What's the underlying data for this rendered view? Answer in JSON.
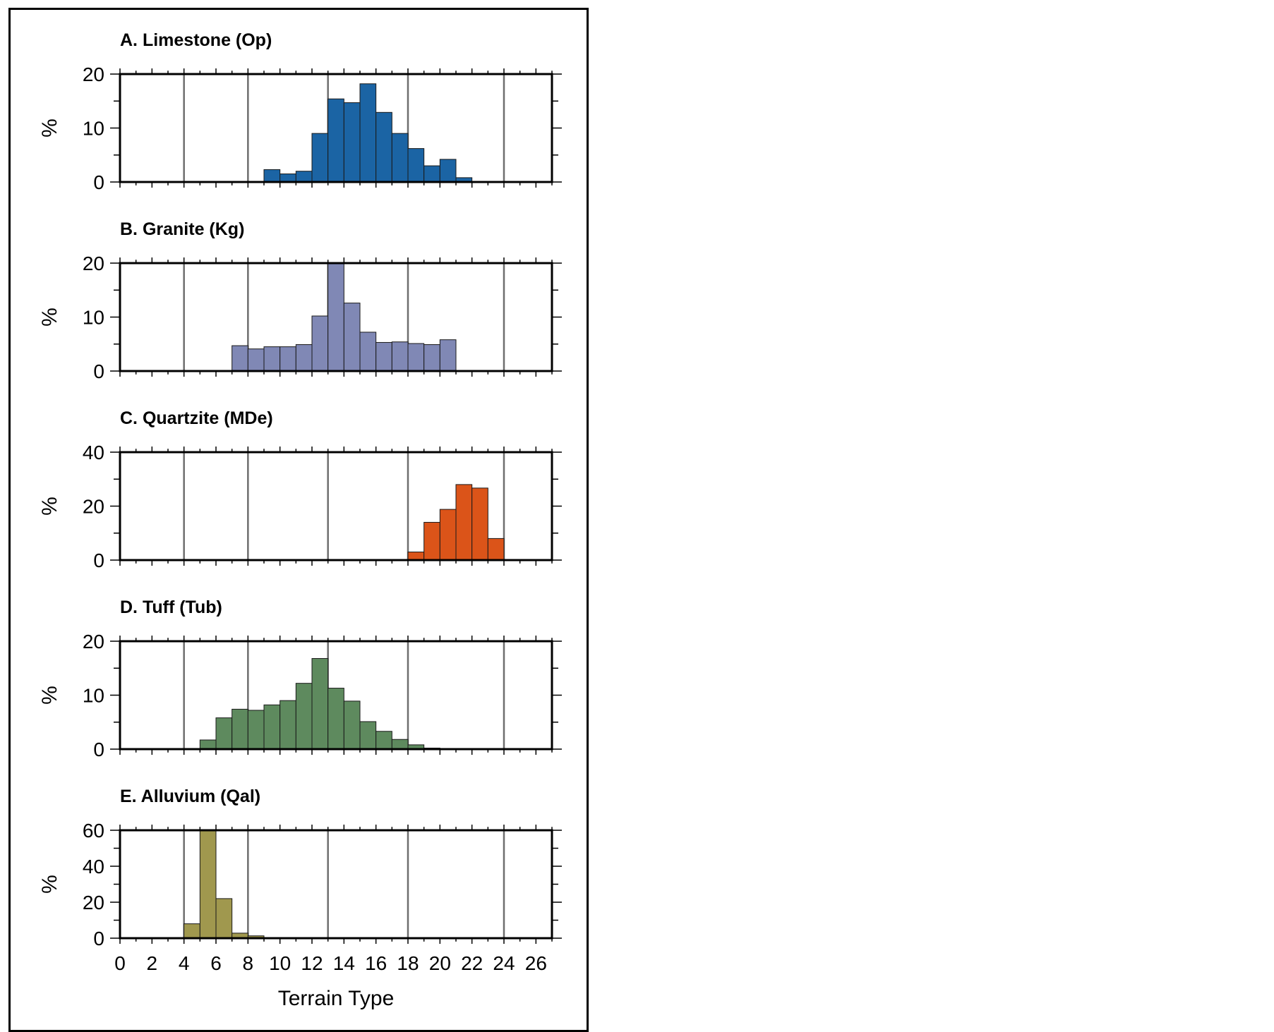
{
  "chart_data": [
    {
      "type": "bar",
      "title": "A. Limestone (Op)",
      "ylabel": "%",
      "xlabel": "",
      "ylim": [
        0,
        20
      ],
      "yticks": [
        0,
        10,
        20
      ],
      "xlim": [
        0,
        27
      ],
      "vlines": [
        4,
        8,
        13,
        18,
        24
      ],
      "color": "#1b64a4",
      "bin_width": 1,
      "x": [
        9.5,
        10.5,
        11.5,
        12.5,
        13.5,
        14.5,
        15.5,
        16.5,
        17.5,
        18.5,
        19.5,
        20.5,
        21.5
      ],
      "values": [
        2.3,
        1.5,
        2.0,
        9.0,
        15.4,
        14.7,
        18.2,
        12.9,
        9.0,
        6.2,
        3.0,
        4.2,
        0.8
      ]
    },
    {
      "type": "bar",
      "title": "B. Granite (Kg)",
      "ylabel": "%",
      "xlabel": "",
      "ylim": [
        0,
        20
      ],
      "yticks": [
        0,
        10,
        20
      ],
      "xlim": [
        0,
        27
      ],
      "vlines": [
        4,
        8,
        13,
        18,
        24
      ],
      "color": "#8088b5",
      "bin_width": 1,
      "x": [
        7.5,
        8.5,
        9.5,
        10.5,
        11.5,
        12.5,
        13.5,
        14.5,
        15.5,
        16.5,
        17.5,
        18.5,
        19.5,
        20.5
      ],
      "values": [
        4.7,
        4.1,
        4.5,
        4.5,
        4.9,
        10.2,
        20.0,
        12.6,
        7.2,
        5.3,
        5.4,
        5.1,
        4.9,
        5.8
      ]
    },
    {
      "type": "bar",
      "title": "C. Quartzite (MDe)",
      "ylabel": "%",
      "xlabel": "",
      "ylim": [
        0,
        40
      ],
      "yticks": [
        0,
        20,
        40
      ],
      "xlim": [
        0,
        27
      ],
      "vlines": [
        4,
        8,
        13,
        18,
        24
      ],
      "color": "#db5419",
      "bin_width": 1,
      "x": [
        18.5,
        19.5,
        20.5,
        21.5,
        22.5,
        23.5
      ],
      "values": [
        3.0,
        14.0,
        18.8,
        28.0,
        26.7,
        8.0
      ]
    },
    {
      "type": "bar",
      "title": "D. Tuff (Tub)",
      "ylabel": "%",
      "xlabel": "",
      "ylim": [
        0,
        20
      ],
      "yticks": [
        0,
        10,
        20
      ],
      "xlim": [
        0,
        27
      ],
      "vlines": [
        4,
        8,
        13,
        18,
        24
      ],
      "color": "#5e8a5e",
      "bin_width": 1,
      "x": [
        5.5,
        6.5,
        7.5,
        8.5,
        9.5,
        10.5,
        11.5,
        12.5,
        13.5,
        14.5,
        15.5,
        16.5,
        17.5,
        18.5,
        19.5,
        20.5
      ],
      "values": [
        1.7,
        5.8,
        7.4,
        7.2,
        8.2,
        9.0,
        12.2,
        16.8,
        11.3,
        8.9,
        5.1,
        3.3,
        1.8,
        0.8,
        0.2,
        0.1
      ]
    },
    {
      "type": "bar",
      "title": "E. Alluvium (Qal)",
      "ylabel": "%",
      "xlabel": "Terrain Type",
      "ylim": [
        0,
        60
      ],
      "yticks": [
        0,
        20,
        40,
        60
      ],
      "xlim": [
        0,
        27
      ],
      "xticks": [
        0,
        2,
        4,
        6,
        8,
        10,
        12,
        14,
        16,
        18,
        20,
        22,
        24,
        26
      ],
      "vlines": [
        4,
        8,
        13,
        18,
        24
      ],
      "color": "#a0984e",
      "bin_width": 1,
      "x": [
        4.5,
        5.5,
        6.5,
        7.5,
        8.5,
        9.5
      ],
      "values": [
        8.0,
        60.0,
        22.0,
        2.8,
        1.3,
        0.2
      ]
    }
  ]
}
